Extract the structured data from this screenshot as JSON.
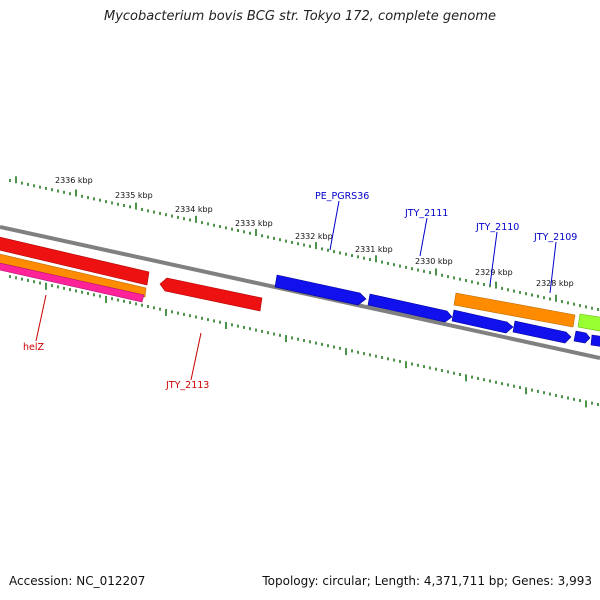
{
  "title": "Mycobacterium bovis BCG str. Tokyo 172, complete genome",
  "footer": {
    "accession": "Accession: NC_012207",
    "summary": "Topology: circular; Length: 4,371,711 bp; Genes: 3,993"
  },
  "ticks": [
    "2336 kbp",
    "2335 kbp",
    "2334 kbp",
    "2333 kbp",
    "2332 kbp",
    "2331 kbp",
    "2330 kbp",
    "2329 kbp",
    "2328 kbp"
  ],
  "gene_labels": [
    "PE_PGRS36",
    "JTY_2111",
    "JTY_2110",
    "JTY_2109",
    "helZ",
    "JTY_2113"
  ],
  "colors": {
    "backbone": "#808080",
    "tick": "#1f7a1f",
    "forward_label": "#0000cc",
    "reverse_label": "#cc0000",
    "red": "#ee1111",
    "blue": "#1111ee",
    "orange": "#ff8c00",
    "pink": "#ff2299",
    "lime": "#99ff33"
  }
}
